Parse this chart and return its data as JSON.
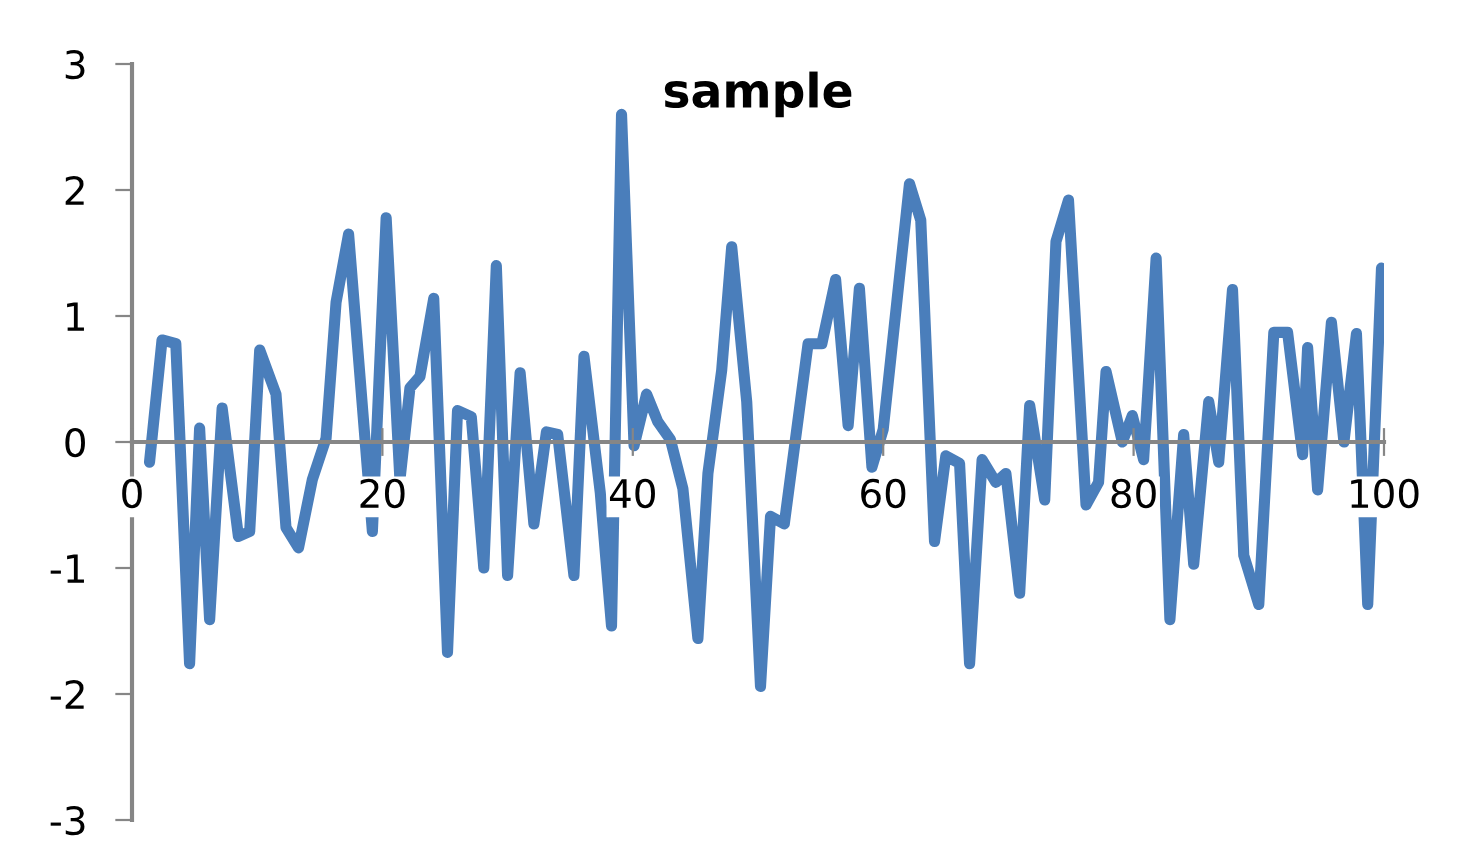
{
  "chart_data": {
    "type": "line",
    "title": "sample",
    "x": [
      1.4,
      2.4,
      3.5,
      4.6,
      5.4,
      6.2,
      7.2,
      8.5,
      9.4,
      10.2,
      11.5,
      12.3,
      13.3,
      14.4,
      15.5,
      16.3,
      17.3,
      19.2,
      20.3,
      21.4,
      22.2,
      23,
      24.1,
      25.2,
      26,
      27.1,
      28.1,
      29.1,
      30,
      31,
      32.1,
      33.1,
      34,
      35.3,
      36.1,
      37.4,
      38.3,
      39.1,
      40.1,
      41.1,
      42,
      43,
      44,
      45.2,
      46,
      47.1,
      47.9,
      49.1,
      50.2,
      51,
      52.1,
      54,
      55.1,
      56.2,
      57.2,
      58.1,
      59.1,
      60,
      62.1,
      63,
      64.1,
      65,
      66.1,
      66.9,
      67.9,
      69,
      69.8,
      70.9,
      71.7,
      72.9,
      73.8,
      74.8,
      76.2,
      77.2,
      77.8,
      79.1,
      79.9,
      80.8,
      81.8,
      82.9,
      84,
      84.8,
      86,
      86.8,
      87.9,
      88.8,
      90,
      91.2,
      92.3,
      93.5,
      93.9,
      94.7,
      95.8,
      96.8,
      97.8,
      98.7,
      99.8
    ],
    "series": [
      {
        "color": "#4a7ebb",
        "values": [
          -0.16,
          0.81,
          0.78,
          -1.76,
          0.11,
          -1.41,
          0.27,
          -0.75,
          -0.71,
          0.73,
          0.38,
          -0.68,
          -0.84,
          -0.3,
          0.03,
          1.11,
          1.65,
          -0.71,
          1.78,
          -0.3,
          0.43,
          0.52,
          1.14,
          -1.67,
          0.25,
          0.2,
          -1.0,
          1.4,
          -1.06,
          0.55,
          -0.65,
          0.08,
          0.06,
          -1.06,
          0.68,
          -0.4,
          -1.46,
          2.6,
          -0.03,
          0.38,
          0.16,
          0.02,
          -0.37,
          -1.56,
          -0.25,
          0.57,
          1.55,
          0.32,
          -1.94,
          -0.59,
          -0.65,
          0.78,
          0.78,
          1.29,
          0.13,
          1.22,
          -0.2,
          0.1,
          2.05,
          1.76,
          -0.79,
          -0.11,
          -0.17,
          -1.76,
          -0.14,
          -0.32,
          -0.25,
          -1.2,
          0.29,
          -0.46,
          1.59,
          1.92,
          -0.5,
          -0.32,
          0.56,
          0,
          0.21,
          -0.14,
          1.46,
          -1.41,
          0.06,
          -0.97,
          0.32,
          -0.16,
          1.21,
          -0.9,
          -1.29,
          0.87,
          0.87,
          -0.1,
          0.75,
          -0.38,
          0.95,
          0,
          0.86,
          -1.29,
          1.38
        ]
      }
    ],
    "xlim": [
      0,
      100
    ],
    "xticks": [
      0,
      20,
      40,
      60,
      80,
      100
    ],
    "ylim": [
      -3,
      3
    ],
    "yticks": [
      -3,
      -2,
      -1,
      0,
      1,
      2,
      3
    ],
    "grid": false,
    "marker": "none",
    "line_style": "solid"
  }
}
